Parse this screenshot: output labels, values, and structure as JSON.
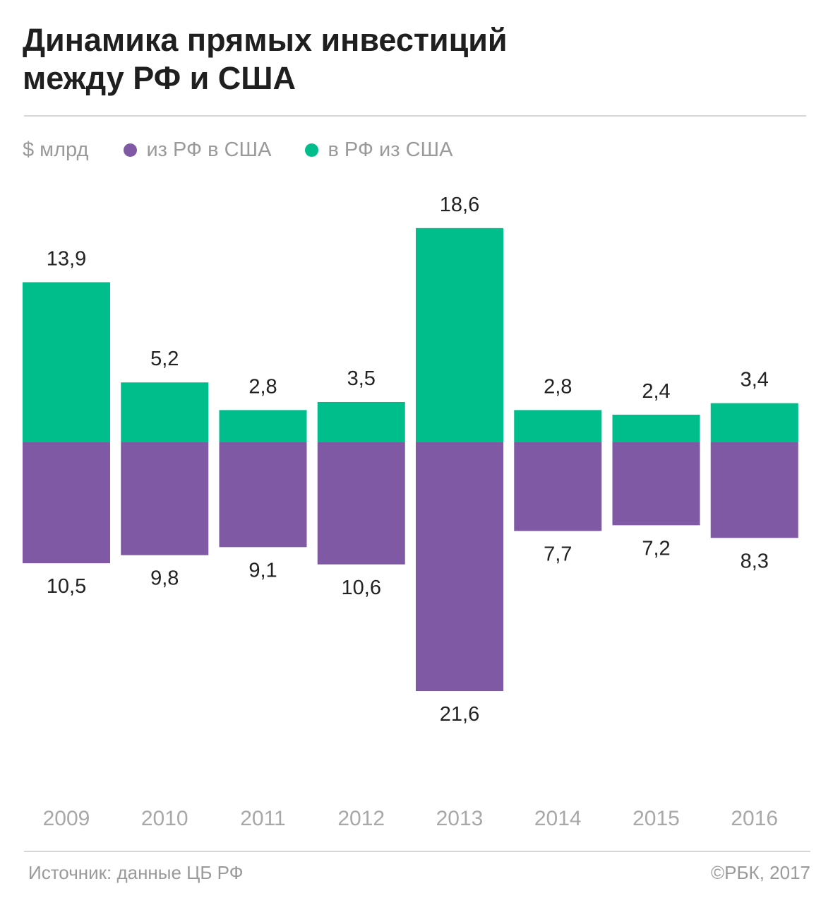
{
  "header": {
    "title_line1": "Динамика прямых инвестиций",
    "title_line2": "между РФ и США"
  },
  "legend": {
    "unit": "$ млрд",
    "series": [
      {
        "name": "из РФ в США",
        "color": "#8059a5"
      },
      {
        "name": "в РФ из США",
        "color": "#00bd8c"
      }
    ]
  },
  "footer": {
    "source": "Источник: данные ЦБ РФ",
    "copyright": "©РБК, 2017"
  },
  "chart_data": {
    "type": "bar",
    "stacking": "diverging",
    "categories": [
      "2009",
      "2010",
      "2011",
      "2012",
      "2013",
      "2014",
      "2015",
      "2016"
    ],
    "series": [
      {
        "name": "в РФ из США",
        "direction": "up",
        "color": "#00bd8c",
        "values": [
          13.9,
          5.2,
          2.8,
          3.5,
          18.6,
          2.8,
          2.4,
          3.4
        ],
        "labels": [
          "13,9",
          "5,2",
          "2,8",
          "3,5",
          "18,6",
          "2,8",
          "2,4",
          "3,4"
        ]
      },
      {
        "name": "из РФ в США",
        "direction": "down",
        "color": "#8059a5",
        "values": [
          10.5,
          9.8,
          9.1,
          10.6,
          21.6,
          7.7,
          7.2,
          8.3
        ],
        "labels": [
          "10,5",
          "9,8",
          "9,1",
          "10,6",
          "21,6",
          "7,7",
          "7,2",
          "8,3"
        ]
      }
    ],
    "ylabel": "$ млрд",
    "grid": false,
    "legend_position": "top-left"
  }
}
